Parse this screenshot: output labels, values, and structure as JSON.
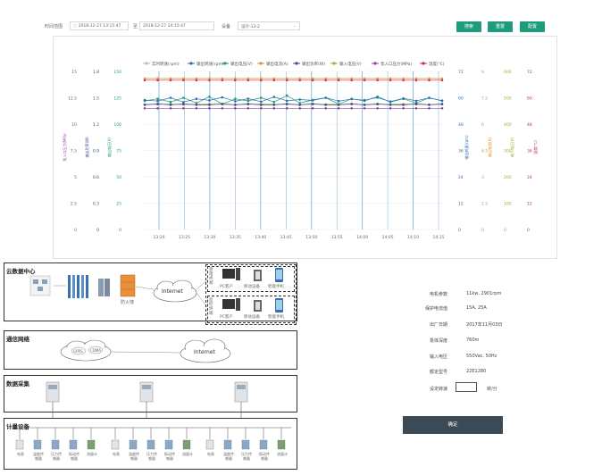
{
  "toolbar": {
    "time_label": "时间范围",
    "start_time": "2018-12-27 13:15:47",
    "separator": "至",
    "end_time": "2018-12-27 14:15:47",
    "device_label": "设备",
    "device_value": "设计-13-2",
    "search_label": "搜索",
    "reset_label": "重置",
    "config_label": "配置"
  },
  "chart_data": {
    "type": "line",
    "legend": [
      "实时转速(rpm)",
      "输出转速(rpm)",
      "输出电压(V)",
      "输出电流(A)",
      "输出功率(W)",
      "输入电压(V)",
      "泵入口压力(MPa)",
      "温度(℃)"
    ],
    "legend_colors": [
      "#bbbbbb",
      "#2a6fb0",
      "#1e9b7b",
      "#e09030",
      "#3a4a8a",
      "#9ab030",
      "#8a4aa0",
      "#c0304a"
    ],
    "x_ticks": [
      "13:20",
      "13:25",
      "13:30",
      "13:35",
      "13:40",
      "13:45",
      "13:50",
      "13:55",
      "14:00",
      "14:05",
      "14:10",
      "14:15"
    ],
    "left_axes": [
      {
        "label": "泵入口压力(MPa)",
        "color": "#8a4aa0",
        "ticks": [
          "0",
          "2.5",
          "5",
          "7.5",
          "10",
          "12.5",
          "15"
        ]
      },
      {
        "label": "输出功率(W)",
        "color": "#3a4a8a",
        "ticks": [
          "0",
          "0.3",
          "0.6",
          "0.9",
          "1.2",
          "1.5",
          "1.8"
        ]
      },
      {
        "label": "输出电压(V)",
        "color": "#1e9b7b",
        "ticks": [
          "0",
          "25",
          "50",
          "75",
          "100",
          "125",
          "150"
        ]
      }
    ],
    "right_axes": [
      {
        "label": "输出转速(rpm)",
        "color": "#2a6fb0",
        "ticks": [
          "0",
          "12",
          "24",
          "36",
          "48",
          "60",
          "72"
        ]
      },
      {
        "label": "输出电流(A)",
        "color": "#e09030",
        "ticks": [
          "0",
          "1.5",
          "3",
          "4.5",
          "6",
          "7.5",
          "9"
        ]
      },
      {
        "label": "输入电压(V)",
        "color": "#9ab030",
        "ticks": [
          "0",
          "100",
          "200",
          "300",
          "400",
          "500",
          "600"
        ]
      },
      {
        "label": "温度(℃)",
        "color": "#c0304a",
        "ticks": [
          "0",
          "12",
          "24",
          "36",
          "48",
          "60",
          "72"
        ]
      }
    ],
    "series": [
      {
        "name": "泵入口压力(MPa)",
        "color": "#8a4aa0",
        "values": [
          11.5,
          11.5,
          11.5,
          11.5,
          11.5,
          11.5,
          11.5,
          11.5,
          11.5,
          11.5,
          11.5,
          11.5,
          11.5,
          11.5,
          11.5,
          11.5,
          11.5,
          11.5,
          11.5,
          11.5,
          11.5,
          11.5,
          11.5,
          11.5
        ]
      },
      {
        "name": "温度(℃)",
        "color": "#c0304a",
        "values": [
          68,
          68,
          68,
          68,
          68,
          68,
          68,
          68,
          68,
          68,
          68,
          68,
          68,
          68,
          68,
          68,
          68,
          68,
          68,
          68,
          68,
          68,
          68,
          68
        ]
      },
      {
        "name": "输出电流(A)",
        "color": "#e09030",
        "values": [
          8.6,
          8.6,
          8.6,
          8.6,
          8.6,
          8.6,
          8.6,
          8.6,
          8.6,
          8.6,
          8.6,
          8.6,
          8.6,
          8.6,
          8.6,
          8.6,
          8.6,
          8.6,
          8.6,
          8.6,
          8.6,
          8.6,
          8.6,
          8.6
        ]
      },
      {
        "name": "输出电压(V)",
        "color": "#1e9b7b",
        "values": [
          122,
          124,
          121,
          125,
          120,
          126,
          119,
          124,
          122,
          125,
          121,
          127,
          120,
          123,
          125,
          119,
          124,
          122,
          126,
          121,
          124,
          120,
          125,
          122
        ]
      },
      {
        "name": "输出转速(rpm)",
        "color": "#2a6fb0",
        "values": [
          59,
          58.5,
          60,
          58,
          59.5,
          58.8,
          60.2,
          58.4,
          59.6,
          58.2,
          60.4,
          58.6,
          59.2,
          58.8,
          60,
          58.5,
          59.4,
          58.9,
          60.1,
          58.3,
          59.7,
          58.6,
          59.9,
          58.7
        ]
      },
      {
        "name": "输入电压(V)",
        "color": "#9ab030",
        "values": [
          475,
          475,
          476,
          474,
          475,
          476,
          475,
          474,
          475,
          476,
          475,
          475,
          474,
          476,
          475,
          475,
          476,
          474,
          475,
          475,
          476,
          475,
          474,
          475
        ]
      },
      {
        "name": "输出功率(W)",
        "color": "#3a4a8a",
        "values": [
          1.42,
          1.43,
          1.42,
          1.43,
          1.42,
          1.42,
          1.43,
          1.42,
          1.43,
          1.42,
          1.42,
          1.43,
          1.42,
          1.43,
          1.42,
          1.42,
          1.43,
          1.42,
          1.43,
          1.42,
          1.42,
          1.43,
          1.42,
          1.43
        ]
      }
    ]
  },
  "diagram": {
    "cloud_title": "云数据中心",
    "internet": "Internet",
    "firewall": "防火墙",
    "manage_label": "管理终端",
    "monitor_label": "监控终端",
    "pc_client": "PC客户",
    "mobile": "移动设备",
    "smart_phone": "智能手机",
    "network_title": "通信网络",
    "gprs": "GPRS",
    "cdma": "CDMA",
    "collect_title": "数据采集",
    "meter_title": "计量设备",
    "group1": [
      "电表",
      "温度传感器",
      "压力传感器",
      "振动传感器",
      "流量计"
    ],
    "group2": [
      "电表",
      "温度传感器",
      "压力传感器",
      "振动传感器",
      "流量计"
    ],
    "group3": [
      "电表",
      "温度传感器",
      "压力传感器",
      "振动传感器",
      "流量计"
    ]
  },
  "info": {
    "rows": [
      {
        "label": "电机参数",
        "value": "11kw, 2901rpm"
      },
      {
        "label": "保护电流值",
        "value": "15A, 25A"
      },
      {
        "label": "出厂日期",
        "value": "2017年11月03日"
      },
      {
        "label": "泵体深度",
        "value": "760m"
      },
      {
        "label": "输入电压",
        "value": "550Vac, 50Hz"
      },
      {
        "label": "额定型号",
        "value": "22E1280"
      }
    ],
    "speed_label": "设定转速",
    "speed_unit": "转/分",
    "confirm_label": "确定"
  }
}
